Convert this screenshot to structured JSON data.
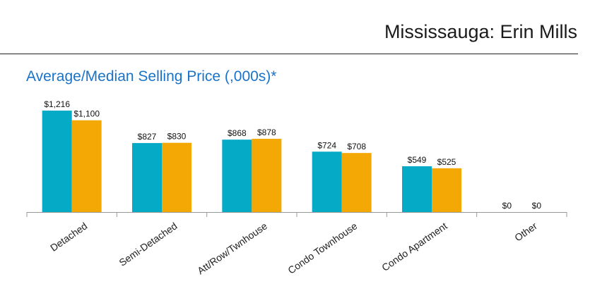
{
  "header": {
    "title": "Mississauga: Erin Mills"
  },
  "colors": {
    "average": "#05abc6",
    "median": "#f4a805",
    "title": "#1a73c8"
  },
  "chart_data": {
    "type": "bar",
    "title": "Average/Median Selling Price (,000s)*",
    "categories": [
      "Detached",
      "Semi-Detached",
      "Att/Row/Twnhouse",
      "Condo Townhouse",
      "Condo Apartment",
      "Other"
    ],
    "series": [
      {
        "values": [
          1216,
          827,
          868,
          724,
          549,
          0
        ],
        "labels": [
          "$1,216",
          "$827",
          "$868",
          "$724",
          "$549",
          "$0"
        ]
      },
      {
        "values": [
          1100,
          830,
          878,
          708,
          525,
          0
        ],
        "labels": [
          "$1,100",
          "$830",
          "$878",
          "$708",
          "$525",
          "$0"
        ]
      }
    ],
    "ylim": [
      0,
      1216
    ],
    "grid": false,
    "legend": "none"
  }
}
